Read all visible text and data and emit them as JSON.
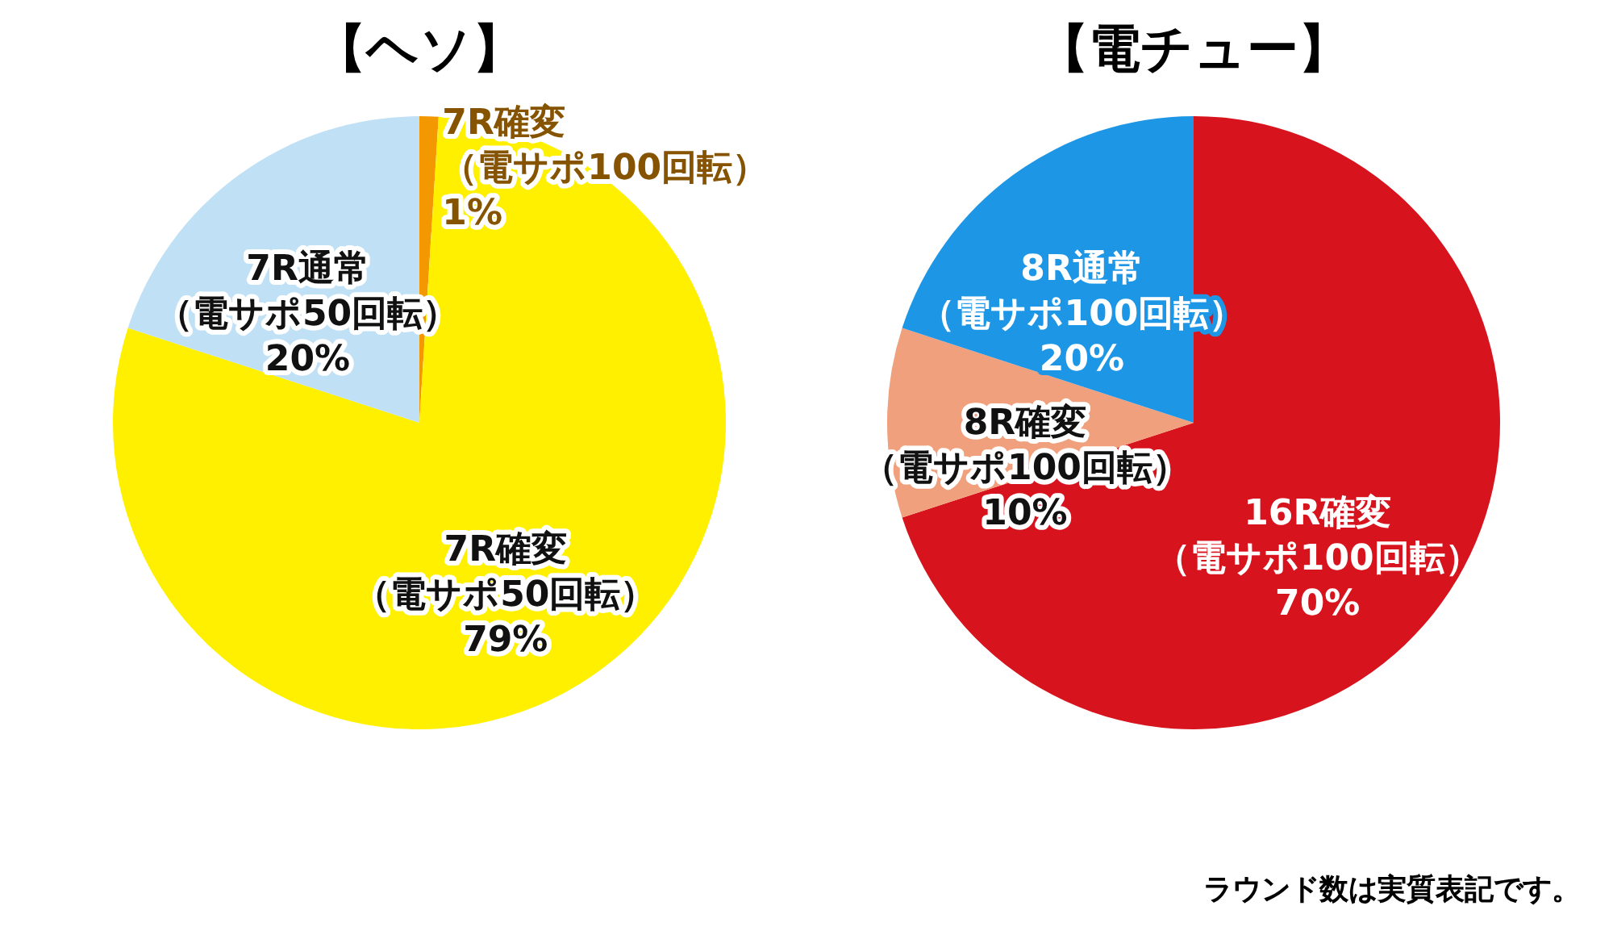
{
  "chart_data": [
    {
      "type": "pie",
      "title": "【ヘソ】",
      "categories": [
        "7R確変（電サポ100回転）",
        "7R確変（電サポ50回転）",
        "7R通常（電サポ50回転）"
      ],
      "values": [
        1,
        79,
        20
      ],
      "colors": [
        "#f39800",
        "#fff000",
        "#bfe0f5"
      ],
      "value_labels": [
        "1%",
        "79%",
        "20%"
      ],
      "legend": false
    },
    {
      "type": "pie",
      "title": "【電チュー】",
      "categories": [
        "16R確変（電サポ100回転）",
        "8R確変（電サポ100回転）",
        "8R通常（電サポ100回転）"
      ],
      "values": [
        70,
        10,
        20
      ],
      "colors": [
        "#d7141e",
        "#f0a07c",
        "#1e96e6"
      ],
      "value_labels": [
        "70%",
        "10%",
        "20%"
      ],
      "legend": false,
      "annotations": [
        "ラウンド数は実質表記です。"
      ]
    }
  ]
}
